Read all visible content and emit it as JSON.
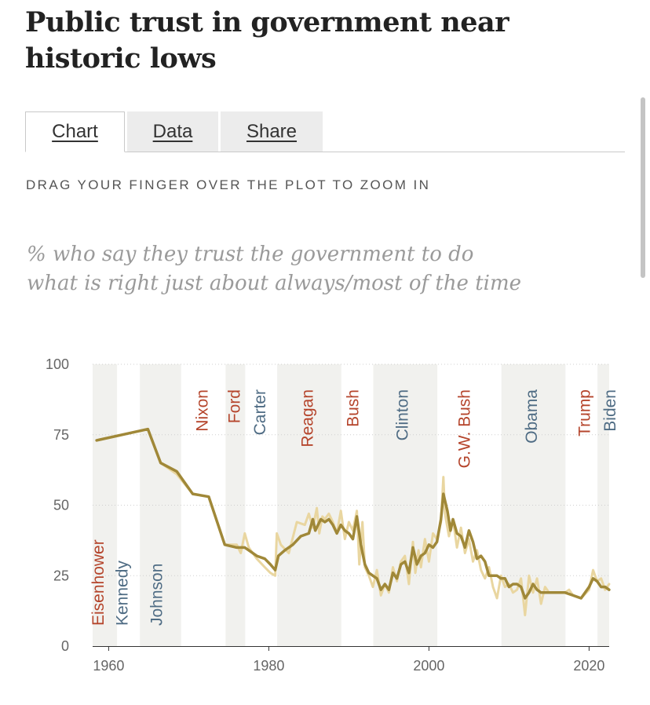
{
  "header": {
    "title": "Public trust in government near historic lows"
  },
  "tabs": [
    {
      "label": "Chart",
      "active": true
    },
    {
      "label": "Data",
      "active": false
    },
    {
      "label": "Share",
      "active": false
    }
  ],
  "hint": "DRAG YOUR FINGER OVER THE PLOT TO ZOOM IN",
  "chart_data": {
    "type": "line",
    "title": "% who say they trust the government to do what is right just about always/most of the time",
    "xlim": [
      1958,
      2023
    ],
    "ylim": [
      0,
      100
    ],
    "xticks": [
      1960,
      1980,
      2000,
      2020
    ],
    "yticks": [
      0,
      25,
      50,
      75,
      100
    ],
    "grid": "horizontal dotted",
    "colors": {
      "moving_average": "#a08838",
      "individual_polls": "#e9d6a0",
      "republican": "#b5452c",
      "democrat": "#4f6c84",
      "term_band": "#f1f1ee"
    },
    "series": [
      {
        "style": "individual polls",
        "x": [
          1958.5,
          1964.9,
          1966.5,
          1968.5,
          1970.5,
          1972.5,
          1974.5,
          1976.0,
          1976.5,
          1977.0,
          1977.5,
          1978.5,
          1979.5,
          1980.2,
          1980.8,
          1981.0,
          1981.5,
          1982.5,
          1983.5,
          1984.5,
          1985.0,
          1985.5,
          1986.0,
          1986.3,
          1986.7,
          1987.0,
          1987.5,
          1988.0,
          1988.5,
          1989.0,
          1989.5,
          1990.0,
          1990.5,
          1991.0,
          1991.3,
          1991.7,
          1992.0,
          1992.5,
          1993.0,
          1993.5,
          1994.0,
          1994.5,
          1995.0,
          1995.5,
          1996.0,
          1996.5,
          1997.0,
          1997.5,
          1998.0,
          1998.3,
          1998.7,
          1999.0,
          1999.5,
          2000.0,
          2000.5,
          2001.0,
          2001.5,
          2001.8,
          2002.0,
          2002.5,
          2003.0,
          2003.5,
          2004.0,
          2004.5,
          2005.0,
          2005.5,
          2006.0,
          2006.5,
          2007.0,
          2007.5,
          2008.0,
          2008.5,
          2009.0,
          2009.5,
          2010.0,
          2010.5,
          2011.0,
          2011.5,
          2012.0,
          2012.5,
          2013.0,
          2013.5,
          2014.0,
          2014.5,
          2015.0,
          2016.0,
          2017.0,
          2017.5,
          2018.0,
          2019.0,
          2020.0,
          2020.5,
          2021.0,
          2021.5,
          2022.0,
          2022.5
        ],
        "y": [
          73,
          77,
          65,
          61,
          54,
          53,
          36,
          36,
          33,
          40,
          35,
          31,
          28,
          26,
          25,
          40,
          36,
          33,
          44,
          43,
          47,
          42,
          49,
          40,
          46,
          45,
          47,
          44,
          40,
          48,
          38,
          44,
          41,
          48,
          29,
          44,
          28,
          25,
          21,
          27,
          18,
          22,
          19,
          28,
          23,
          30,
          32,
          22,
          37,
          26,
          34,
          28,
          38,
          30,
          40,
          38,
          44,
          60,
          47,
          39,
          45,
          35,
          42,
          33,
          38,
          30,
          34,
          27,
          24,
          28,
          21,
          17,
          25,
          21,
          22,
          19,
          20,
          24,
          11,
          25,
          19,
          24,
          15,
          21,
          19,
          19,
          19,
          20,
          18,
          17,
          20,
          27,
          23,
          24,
          20,
          22
        ]
      },
      {
        "style": "moving average",
        "x": [
          1958.5,
          1964.9,
          1966.5,
          1968.5,
          1970.5,
          1972.5,
          1974.5,
          1976.0,
          1976.5,
          1977.0,
          1977.5,
          1978.5,
          1979.5,
          1980.2,
          1980.8,
          1981.2,
          1982.0,
          1983.0,
          1984.0,
          1985.0,
          1985.5,
          1985.8,
          1986.5,
          1987.0,
          1987.5,
          1988.0,
          1988.5,
          1989.0,
          1989.5,
          1990.0,
          1990.5,
          1991.0,
          1991.5,
          1992.0,
          1992.5,
          1993.0,
          1993.5,
          1994.0,
          1994.5,
          1995.0,
          1995.5,
          1996.0,
          1996.5,
          1997.0,
          1997.5,
          1998.0,
          1998.5,
          1999.0,
          1999.5,
          2000.0,
          2000.5,
          2001.0,
          2001.5,
          2001.8,
          2002.3,
          2002.7,
          2003.0,
          2003.5,
          2004.0,
          2004.5,
          2005.0,
          2005.5,
          2006.0,
          2006.5,
          2007.0,
          2007.5,
          2008.0,
          2008.5,
          2009.0,
          2009.5,
          2010.0,
          2010.5,
          2011.0,
          2011.5,
          2012.0,
          2012.5,
          2013.0,
          2013.5,
          2014.0,
          2014.5,
          2015.0,
          2016.0,
          2017.0,
          2018.0,
          2019.0,
          2020.0,
          2020.5,
          2021.0,
          2021.5,
          2022.0,
          2022.5
        ],
        "y": [
          73,
          77,
          65,
          62,
          54,
          53,
          36,
          35,
          35,
          35,
          34,
          32,
          31,
          29,
          27,
          32,
          34,
          36,
          39,
          40,
          45,
          41,
          45,
          44,
          45,
          43,
          40,
          43,
          41,
          40,
          38,
          46,
          36,
          29,
          26,
          25,
          24,
          20,
          22,
          20,
          26,
          24,
          29,
          30,
          26,
          35,
          29,
          32,
          33,
          36,
          35,
          37,
          45,
          54,
          48,
          41,
          45,
          40,
          39,
          35,
          41,
          37,
          31,
          32,
          30,
          25,
          25,
          25,
          24,
          24,
          21,
          22,
          22,
          21,
          17,
          19,
          22,
          20,
          19,
          19,
          19,
          19,
          19,
          18,
          17,
          21,
          24,
          23,
          21,
          21,
          20
        ]
      }
    ],
    "presidents": [
      {
        "name": "Eisenhower",
        "start": 1953.0,
        "end": 1961.05,
        "party": "R",
        "label_pos": "bottom",
        "label_x": 1958.7
      },
      {
        "name": "Kennedy",
        "start": 1961.05,
        "end": 1963.9,
        "party": "D",
        "label_pos": "bottom",
        "label_x": 1961.7
      },
      {
        "name": "Johnson",
        "start": 1963.9,
        "end": 1969.05,
        "party": "D",
        "label_pos": "bottom",
        "label_x": 1966.0
      },
      {
        "name": "Nixon",
        "start": 1969.05,
        "end": 1974.6,
        "party": "R",
        "label_pos": "top",
        "label_x": 1971.7
      },
      {
        "name": "Ford",
        "start": 1974.6,
        "end": 1977.05,
        "party": "R",
        "label_pos": "top",
        "label_x": 1975.7
      },
      {
        "name": "Carter",
        "start": 1977.05,
        "end": 1981.05,
        "party": "D",
        "label_pos": "top",
        "label_x": 1978.9
      },
      {
        "name": "Reagan",
        "start": 1981.05,
        "end": 1989.05,
        "party": "R",
        "label_pos": "top",
        "label_x": 1984.8
      },
      {
        "name": "Bush",
        "start": 1989.05,
        "end": 1993.05,
        "party": "R",
        "label_pos": "top",
        "label_x": 1990.5
      },
      {
        "name": "Clinton",
        "start": 1993.05,
        "end": 2001.05,
        "party": "D",
        "label_pos": "top",
        "label_x": 1996.7
      },
      {
        "name": "G.W. Bush",
        "start": 2001.05,
        "end": 2009.05,
        "party": "R",
        "label_pos": "top",
        "label_x": 2004.4
      },
      {
        "name": "Obama",
        "start": 2009.05,
        "end": 2017.05,
        "party": "D",
        "label_pos": "top",
        "label_x": 2012.8
      },
      {
        "name": "Trump",
        "start": 2017.05,
        "end": 2021.05,
        "party": "R",
        "label_pos": "top",
        "label_x": 2019.4
      },
      {
        "name": "Biden",
        "start": 2021.05,
        "end": 2023.5,
        "party": "D",
        "label_pos": "top",
        "label_x": 2022.6
      }
    ]
  }
}
